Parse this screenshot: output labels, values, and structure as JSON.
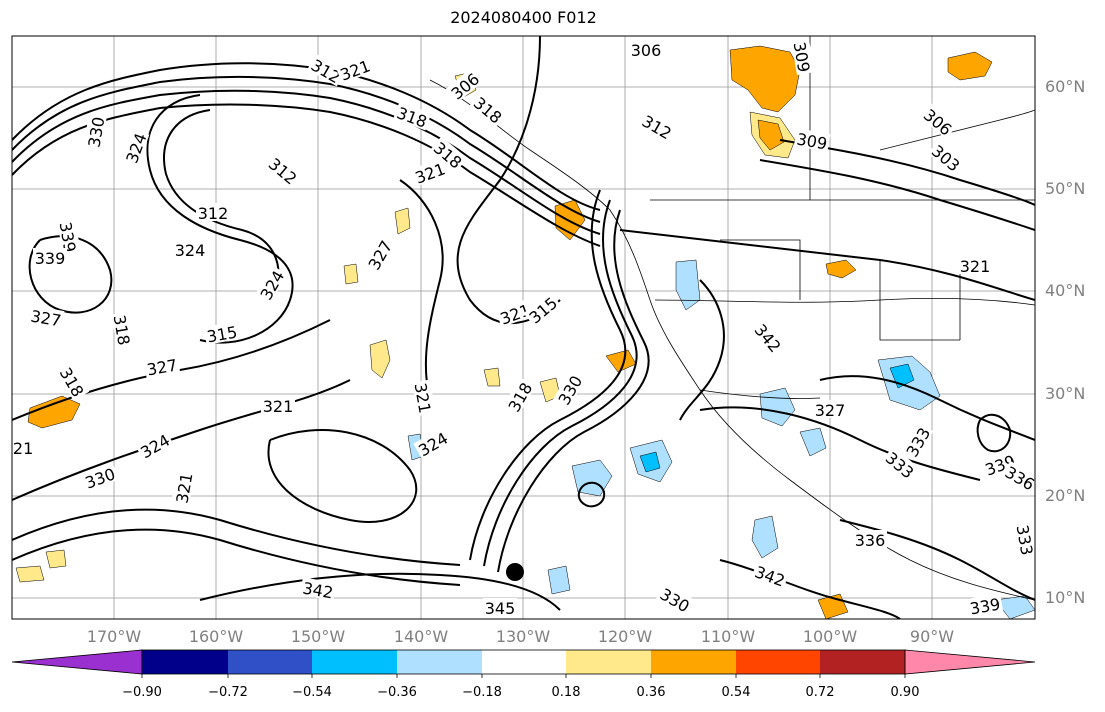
{
  "title": "2024080400 F012",
  "latitude_labels": [
    "60°N",
    "50°N",
    "40°N",
    "30°N",
    "20°N",
    "10°N"
  ],
  "longitude_labels": [
    "170°W",
    "160°W",
    "150°W",
    "140°W",
    "130°W",
    "120°W",
    "110°W",
    "100°W",
    "90°W"
  ],
  "contour_labels": [
    "306",
    "318",
    "306",
    "309",
    "306",
    "303",
    "312",
    "309",
    "312",
    "318",
    "321",
    "318",
    "321",
    "312",
    "324",
    "330",
    "339",
    "312",
    "324",
    "327",
    "324",
    "321",
    "315",
    "327",
    "318",
    "315",
    "327",
    "318",
    "321",
    "339",
    "342",
    "321",
    "330",
    "318",
    "321",
    "324",
    "330",
    "324",
    "333",
    "321",
    "333",
    "339",
    "336",
    "336",
    "342",
    "342",
    "345",
    "330",
    "339",
    "333",
    "327",
    "321"
  ],
  "colorbar": {
    "tick_labels": [
      "−0.90",
      "−0.72",
      "−0.54",
      "−0.36",
      "−0.18",
      "0.18",
      "0.36",
      "0.54",
      "0.72",
      "0.90"
    ],
    "colors": [
      "#9b30d0",
      "#00008b",
      "#3050c8",
      "#00bfff",
      "#b0e0ff",
      "#ffffff",
      "#ffe98a",
      "#ffa500",
      "#ff4500",
      "#b22222",
      "#ff88aa"
    ]
  },
  "fill_colors": {
    "light_yellow": "#ffe98a",
    "orange": "#ffa500",
    "light_blue": "#b0e0ff",
    "deep_sky_blue": "#00bfff"
  }
}
